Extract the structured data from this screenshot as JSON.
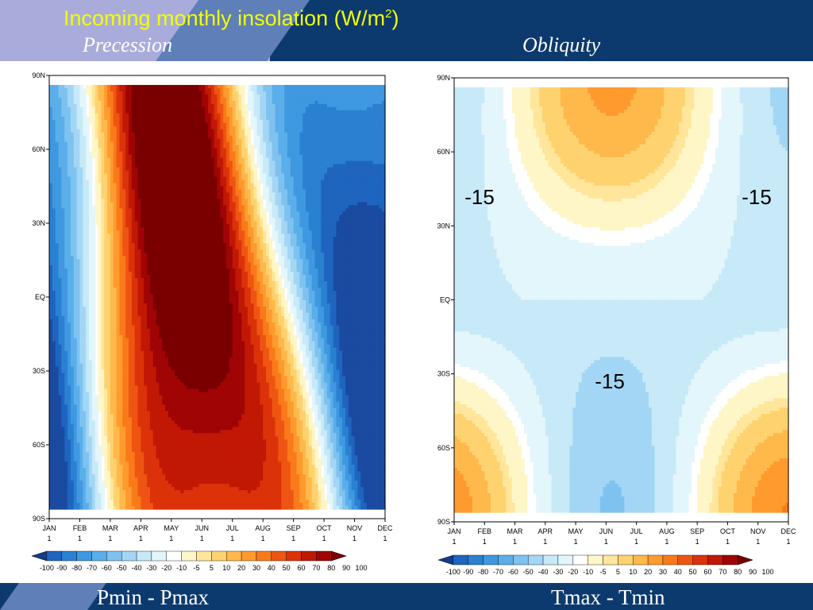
{
  "slide": {
    "title_main": "Incoming monthly insolation (W/m",
    "title_sup": "2",
    "title_end": ")",
    "left_subtitle": "Precession",
    "right_subtitle": "Obliquity",
    "left_footer": "Pmin - Pmax",
    "right_footer": "Tmax - Tmin"
  },
  "chart_data": [
    {
      "type": "heatmap",
      "title": "Precession",
      "x_ticks": [
        "JAN 1",
        "FEB 1",
        "MAR 1",
        "APR 1",
        "MAY 1",
        "JUN 1",
        "JUL 1",
        "AUG 1",
        "SEP 1",
        "OCT 1",
        "NOV 1",
        "DEC 1"
      ],
      "y_ticks": [
        "90N",
        "60N",
        "30N",
        "EQ",
        "30S",
        "60S",
        "90S"
      ],
      "colorbar_levels": [
        "-100",
        "-90",
        "-80",
        "-70",
        "-60",
        "-50",
        "-40",
        "-30",
        "-20",
        "-10",
        "-5",
        "5",
        "10",
        "20",
        "30",
        "40",
        "50",
        "60",
        "70",
        "80",
        "90",
        "100"
      ],
      "annotations": [],
      "footer": "Pmin - Pmax"
    },
    {
      "type": "heatmap",
      "title": "Obliquity",
      "x_ticks": [
        "JAN 1",
        "FEB 1",
        "MAR 1",
        "APR 1",
        "MAY 1",
        "JUN 1",
        "JUL 1",
        "AUG 1",
        "SEP 1",
        "OCT 1",
        "NOV 1",
        "DEC 1"
      ],
      "y_ticks": [
        "90N",
        "60N",
        "30N",
        "EQ",
        "30S",
        "60S",
        "90S"
      ],
      "colorbar_levels": [
        "-100",
        "-90",
        "-80",
        "-70",
        "-60",
        "-50",
        "-40",
        "-30",
        "-20",
        "-10",
        "-5",
        "5",
        "10",
        "20",
        "30",
        "40",
        "50",
        "60",
        "70",
        "80",
        "90",
        "100"
      ],
      "annotations": [
        "-15",
        "-15",
        "-15"
      ],
      "footer": "Tmax - Tmin"
    }
  ],
  "colors": {
    "bar": "#0d3a6e",
    "lavender": "#a9acdb",
    "title": "#f2ff00",
    "scale": [
      "#1a4ba0",
      "#1f65bf",
      "#2a80d1",
      "#3f98e0",
      "#5aaeea",
      "#7fc2f0",
      "#a3d6f5",
      "#c7e9f8",
      "#e3f6fb",
      "#ffffff",
      "#fff6c8",
      "#ffe69a",
      "#ffd270",
      "#ffb84a",
      "#ff9a2e",
      "#fa7a1a",
      "#ef5512",
      "#dc320a",
      "#c11805",
      "#a00404",
      "#7a0000"
    ]
  }
}
